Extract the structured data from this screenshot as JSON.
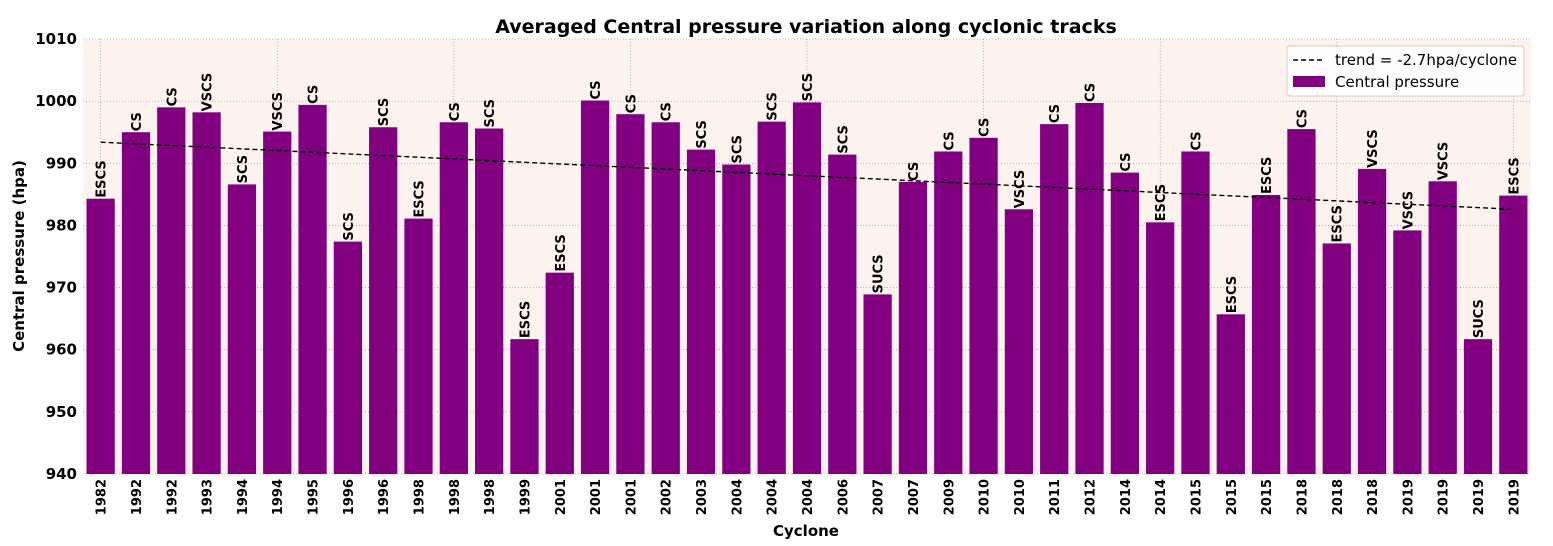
{
  "chart_data": {
    "type": "bar",
    "title": "Averaged Central pressure variation along cyclonic tracks",
    "xlabel": "Cyclone",
    "ylabel": "Central pressure (hpa)",
    "ylim": [
      940,
      1010
    ],
    "yticks": [
      940,
      950,
      960,
      970,
      980,
      990,
      1000,
      1010
    ],
    "grid": true,
    "legend_position": "top-right",
    "categories": [
      "1982",
      "1992",
      "1992",
      "1993",
      "1994",
      "1994",
      "1995",
      "1996",
      "1996",
      "1998",
      "1998",
      "1998",
      "1999",
      "2001",
      "2001",
      "2001",
      "2002",
      "2003",
      "2004",
      "2004",
      "2004",
      "2006",
      "2007",
      "2007",
      "2009",
      "2010",
      "2010",
      "2011",
      "2012",
      "2014",
      "2014",
      "2015",
      "2015",
      "2015",
      "2018",
      "2018",
      "2018",
      "2019",
      "2019",
      "2019",
      "2019"
    ],
    "bar_labels": [
      "ESCS",
      "CS",
      "CS",
      "VSCS",
      "SCS",
      "VSCS",
      "CS",
      "SCS",
      "SCS",
      "ESCS",
      "CS",
      "SCS",
      "ESCS",
      "ESCS",
      "CS",
      "CS",
      "CS",
      "SCS",
      "SCS",
      "SCS",
      "SCS",
      "SCS",
      "SUCS",
      "CS",
      "CS",
      "CS",
      "VSCS",
      "CS",
      "CS",
      "CS",
      "ESCS",
      "CS",
      "ESCS",
      "ESCS",
      "CS",
      "ESCS",
      "VSCS",
      "VSCS",
      "VSCS",
      "SUCS",
      "ESCS"
    ],
    "series": [
      {
        "name": "Central pressure",
        "color": "#800080",
        "values": [
          984.3,
          995.0,
          999.0,
          998.2,
          986.6,
          995.1,
          999.4,
          977.4,
          995.8,
          981.1,
          996.6,
          995.6,
          961.7,
          972.4,
          1000.1,
          997.9,
          996.6,
          992.2,
          989.8,
          996.7,
          999.8,
          991.4,
          968.9,
          987.0,
          991.9,
          994.1,
          982.6,
          996.3,
          999.7,
          988.5,
          980.5,
          991.9,
          965.7,
          984.9,
          995.5,
          977.1,
          989.1,
          979.2,
          987.1,
          961.7,
          984.8
        ]
      }
    ],
    "trend": {
      "name": "trend = -2.7hpa/cyclone",
      "start": 993.4,
      "end": 982.6,
      "style": "dashed",
      "color": "#000000"
    },
    "plot_background": "#fdf3ee"
  }
}
